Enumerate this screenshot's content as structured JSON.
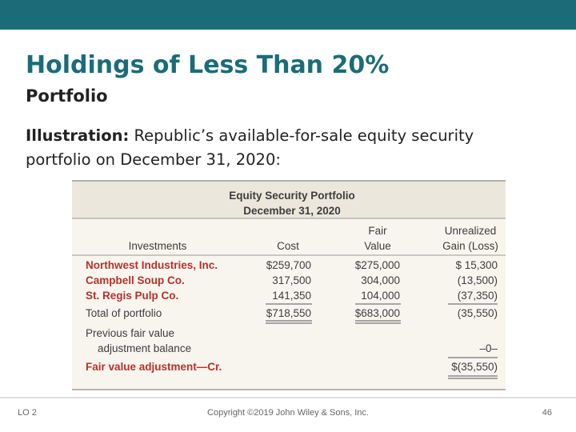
{
  "slide": {
    "title": "Holdings of Less Than 20%",
    "subtitle": "Portfolio",
    "illustration": {
      "label": "Illustration:",
      "text": "Republic’s available-for-sale equity security portfolio on December 31, 2020:"
    }
  },
  "table": {
    "title": "Equity Security Portfolio",
    "date": "December 31, 2020",
    "columns": [
      [
        "Investments"
      ],
      [
        "Cost"
      ],
      [
        "Fair",
        "Value"
      ],
      [
        "Unrealized",
        "Gain (Loss)"
      ]
    ],
    "rows": [
      {
        "label": [
          "Northwest Industries, Inc."
        ],
        "cost": "$259,700",
        "fair_value": "$275,000",
        "gain": "$ 15,300"
      },
      {
        "label": [
          "Campbell Soup Co."
        ],
        "cost": "317,500",
        "fair_value": "304,000",
        "gain": "(13,500)"
      },
      {
        "label": [
          "St. Regis Pulp Co."
        ],
        "cost": "141,350",
        "fair_value": "104,000",
        "gain": "(37,350)"
      },
      {
        "label": [
          "Total of portfolio"
        ],
        "cost": "$718,550",
        "fair_value": "$683,000",
        "gain": "(35,550)"
      },
      {
        "label": [
          "Previous fair value",
          "adjustment balance"
        ],
        "gain": "–0–"
      },
      {
        "label": [
          "Fair value adjustment—Cr."
        ],
        "gain": "$(35,550)"
      }
    ]
  },
  "footer": {
    "objective": "LO 2",
    "copyright": "Copyright ©2019 John Wiley & Sons, Inc.",
    "page": "46"
  }
}
